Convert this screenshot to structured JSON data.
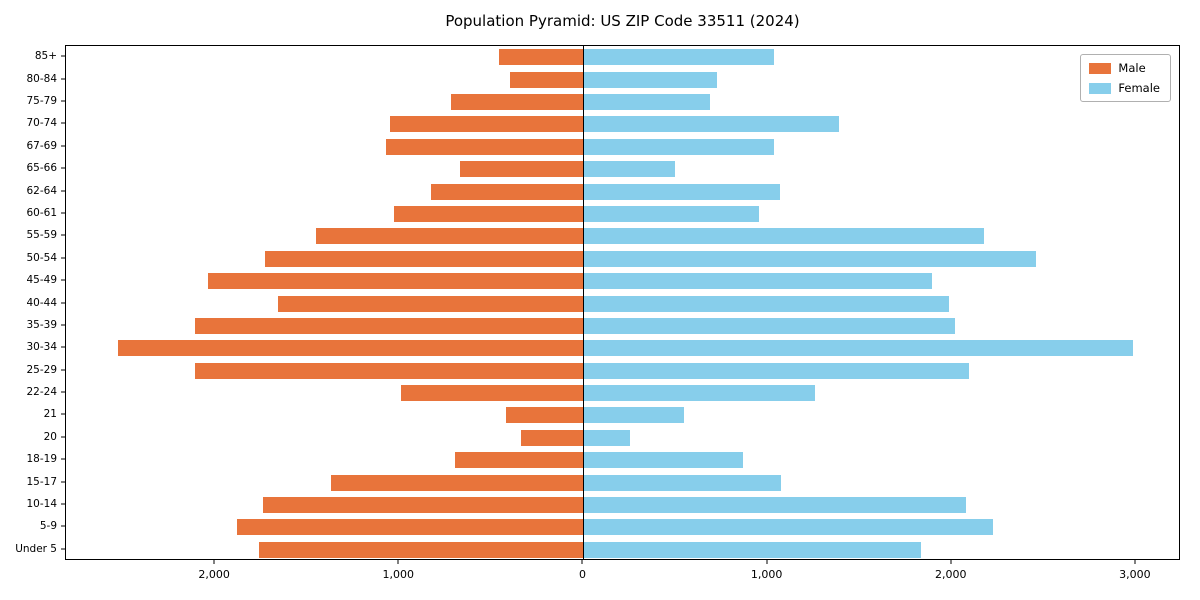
{
  "chart_data": {
    "type": "bar",
    "variant": "population-pyramid",
    "title": "Population Pyramid: US ZIP Code 33511 (2024)",
    "xlabel": "",
    "ylabel": "",
    "xlim": [
      -2810,
      3245
    ],
    "x_ticks": [
      -2000,
      -1000,
      0,
      1000,
      2000,
      3000
    ],
    "x_tick_labels": [
      "2,000",
      "1,000",
      "0",
      "1,000",
      "2,000",
      "3,000"
    ],
    "grid": false,
    "legend_position": "upper right",
    "categories_top_to_bottom": [
      "85+",
      "80-84",
      "75-79",
      "70-74",
      "67-69",
      "65-66",
      "62-64",
      "60-61",
      "55-59",
      "50-54",
      "45-49",
      "40-44",
      "35-39",
      "30-34",
      "25-29",
      "22-24",
      "21",
      "20",
      "18-19",
      "15-17",
      "10-14",
      "5-9",
      "Under 5"
    ],
    "series": [
      {
        "name": "Male",
        "color": "#e8743b",
        "direction": "left",
        "values": [
          460,
          400,
          720,
          1050,
          1070,
          670,
          830,
          1030,
          1450,
          1730,
          2040,
          1660,
          2110,
          2530,
          2110,
          990,
          420,
          340,
          700,
          1370,
          1740,
          1880,
          1760
        ]
      },
      {
        "name": "Female",
        "color": "#87ceeb",
        "direction": "right",
        "values": [
          1030,
          720,
          680,
          1380,
          1030,
          490,
          1060,
          950,
          2170,
          2450,
          1890,
          1980,
          2010,
          2980,
          2090,
          1250,
          540,
          250,
          860,
          1070,
          2070,
          2220,
          1830
        ]
      }
    ]
  }
}
